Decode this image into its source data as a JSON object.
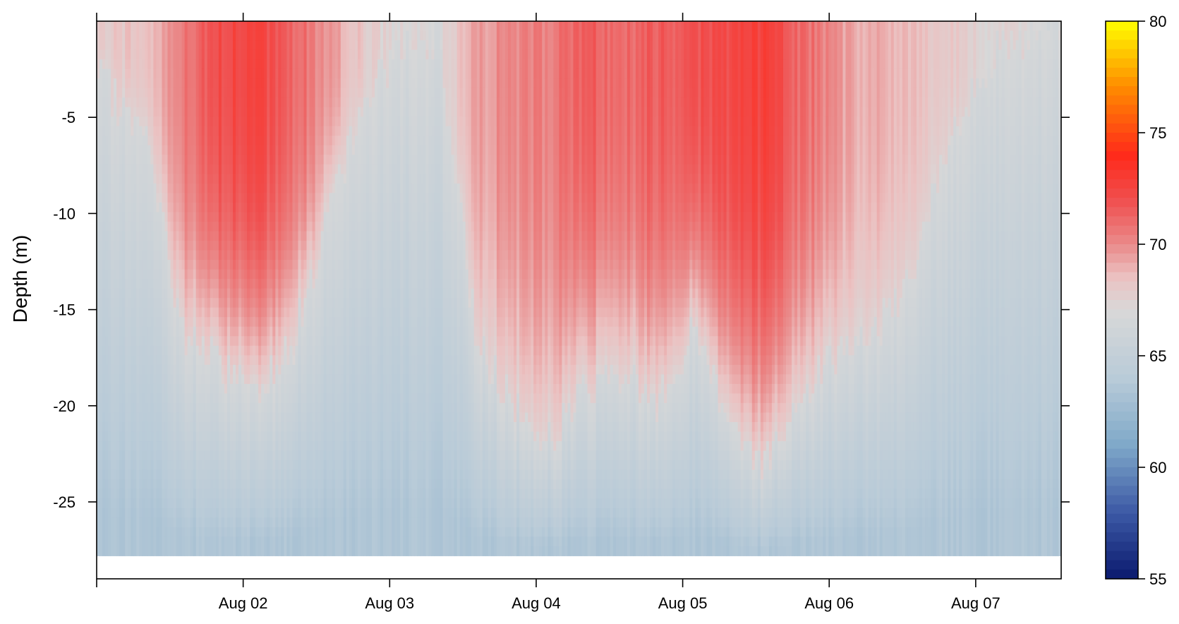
{
  "chart_data": {
    "type": "heatmap",
    "title": "",
    "xlabel": "",
    "ylabel": "Depth (m)",
    "x": {
      "type": "date",
      "range": [
        "2023-08-01T00:00",
        "2023-08-07T14:00"
      ],
      "tick_labels": [
        "Aug 02",
        "Aug 03",
        "Aug 04",
        "Aug 05",
        "Aug 06",
        "Aug 07"
      ]
    },
    "y": {
      "range": [
        -29,
        0
      ],
      "data_bottom": -27.8,
      "ticks": [
        -5,
        -10,
        -15,
        -20,
        -25
      ],
      "tick_labels": [
        "-5",
        "-10",
        "-15",
        "-20",
        "-25"
      ]
    },
    "colorbar": {
      "range": [
        55,
        80
      ],
      "ticks": [
        55,
        60,
        65,
        70,
        75,
        80
      ],
      "tick_labels": [
        "55",
        "60",
        "65",
        "70",
        "75",
        "80"
      ],
      "colors": [
        {
          "value": 55,
          "color": "#0a1a6e"
        },
        {
          "value": 58,
          "color": "#3d5aa6"
        },
        {
          "value": 61,
          "color": "#7fa9c9"
        },
        {
          "value": 64,
          "color": "#b9cbd8"
        },
        {
          "value": 67,
          "color": "#d8d8d8"
        },
        {
          "value": 68.5,
          "color": "#ebc2c2"
        },
        {
          "value": 70,
          "color": "#ea8a8a"
        },
        {
          "value": 72,
          "color": "#f04e4e"
        },
        {
          "value": 74,
          "color": "#ff2a1a"
        },
        {
          "value": 77,
          "color": "#ff8a00"
        },
        {
          "value": 80,
          "color": "#ffff00"
        }
      ]
    },
    "warm_layer_depth": {
      "description": "depth (m) of the bottom of the warm (>67) surface layer across time, with peak surface temperature",
      "time": [
        "08-01 00:00",
        "08-01 08:00",
        "08-01 14:00",
        "08-01 20:00",
        "08-02 02:00",
        "08-02 08:00",
        "08-02 14:00",
        "08-02 20:00",
        "08-03 02:00",
        "08-03 08:00",
        "08-03 14:00",
        "08-03 20:00",
        "08-04 02:00",
        "08-04 08:00",
        "08-04 14:00",
        "08-04 20:00",
        "08-05 02:00",
        "08-05 08:00",
        "08-05 14:00",
        "08-05 20:00",
        "08-06 02:00",
        "08-06 08:00",
        "08-06 14:00",
        "08-06 20:00",
        "08-07 02:00",
        "08-07 08:00",
        "08-07 14:00"
      ],
      "depth": [
        -3,
        -6,
        -16,
        -18,
        -19,
        -17,
        -10,
        -4,
        -1,
        -1,
        -16,
        -20,
        -22,
        -19,
        -18,
        -20,
        -16,
        -21,
        -23,
        -19,
        -17,
        -16,
        -13,
        -6,
        -2,
        -1,
        0
      ],
      "surface_temp": [
        68.0,
        68.5,
        70.5,
        72.0,
        72.5,
        71.5,
        69.5,
        68.0,
        67.0,
        67.0,
        69.5,
        70.0,
        70.5,
        71.5,
        71.0,
        71.5,
        72.0,
        72.5,
        72.5,
        71.0,
        69.5,
        69.0,
        68.5,
        68.0,
        67.5,
        67.0,
        66.5
      ]
    },
    "bottom_temp": 63.5,
    "grid": false,
    "legend": "colorbar right"
  }
}
